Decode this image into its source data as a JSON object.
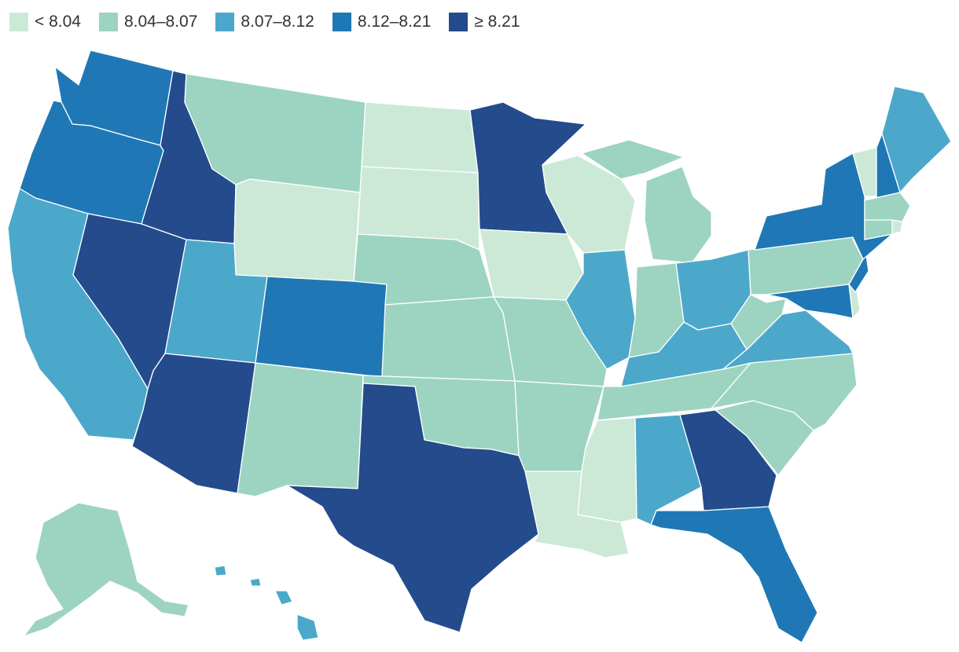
{
  "legend": {
    "items": [
      {
        "label": "< 8.04",
        "color": "#cce9d8",
        "class": 0
      },
      {
        "label": "8.04–8.07",
        "color": "#9dd4c1",
        "class": 1
      },
      {
        "label": "8.07–8.12",
        "color": "#4ba8cb",
        "class": 2
      },
      {
        "label": "8.12–8.21",
        "color": "#1f78b5",
        "class": 3
      },
      {
        "label": "≥ 8.21",
        "color": "#244b8c",
        "class": 4
      }
    ]
  },
  "states": [
    {
      "name": "washington",
      "class": 3
    },
    {
      "name": "oregon",
      "class": 3
    },
    {
      "name": "california",
      "class": 2
    },
    {
      "name": "nevada",
      "class": 4
    },
    {
      "name": "idaho",
      "class": 4
    },
    {
      "name": "montana",
      "class": 1
    },
    {
      "name": "wyoming",
      "class": 0
    },
    {
      "name": "utah",
      "class": 2
    },
    {
      "name": "arizona",
      "class": 4
    },
    {
      "name": "colorado",
      "class": 3
    },
    {
      "name": "new-mexico",
      "class": 1
    },
    {
      "name": "north-dakota",
      "class": 0
    },
    {
      "name": "south-dakota",
      "class": 0
    },
    {
      "name": "nebraska",
      "class": 1
    },
    {
      "name": "kansas",
      "class": 1
    },
    {
      "name": "oklahoma",
      "class": 1
    },
    {
      "name": "texas",
      "class": 4
    },
    {
      "name": "minnesota",
      "class": 4
    },
    {
      "name": "iowa",
      "class": 0
    },
    {
      "name": "missouri",
      "class": 1
    },
    {
      "name": "arkansas",
      "class": 1
    },
    {
      "name": "louisiana",
      "class": 0
    },
    {
      "name": "wisconsin",
      "class": 0
    },
    {
      "name": "illinois",
      "class": 2
    },
    {
      "name": "michigan",
      "class": 1
    },
    {
      "name": "indiana",
      "class": 1
    },
    {
      "name": "ohio",
      "class": 2
    },
    {
      "name": "kentucky",
      "class": 2
    },
    {
      "name": "tennessee",
      "class": 1
    },
    {
      "name": "mississippi",
      "class": 0
    },
    {
      "name": "alabama",
      "class": 2
    },
    {
      "name": "georgia",
      "class": 4
    },
    {
      "name": "florida",
      "class": 3
    },
    {
      "name": "south-carolina",
      "class": 1
    },
    {
      "name": "north-carolina",
      "class": 1
    },
    {
      "name": "virginia",
      "class": 2
    },
    {
      "name": "west-virginia",
      "class": 1
    },
    {
      "name": "pennsylvania",
      "class": 1
    },
    {
      "name": "new-york",
      "class": 3
    },
    {
      "name": "new-jersey",
      "class": 3
    },
    {
      "name": "delaware",
      "class": 0
    },
    {
      "name": "maryland",
      "class": 3
    },
    {
      "name": "connecticut",
      "class": 1
    },
    {
      "name": "rhode-island",
      "class": 0
    },
    {
      "name": "massachusetts",
      "class": 1
    },
    {
      "name": "vermont",
      "class": 0
    },
    {
      "name": "new-hampshire",
      "class": 3
    },
    {
      "name": "maine",
      "class": 2
    },
    {
      "name": "alaska",
      "class": 1
    },
    {
      "name": "hawaii",
      "class": 2
    }
  ]
}
